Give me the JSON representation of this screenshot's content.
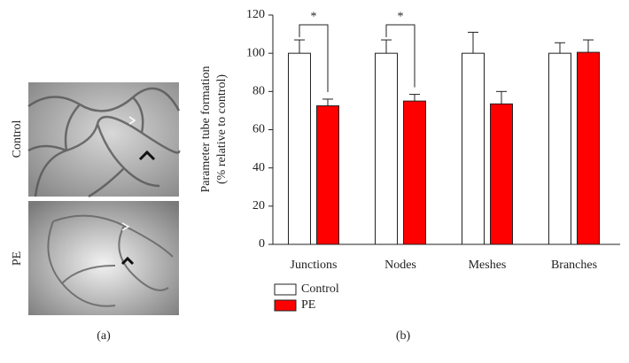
{
  "panels": {
    "a": {
      "label": "(a)",
      "image_labels": [
        "Control",
        "PE"
      ]
    },
    "b": {
      "label": "(b)"
    }
  },
  "chart_data": {
    "type": "bar",
    "ylabel": [
      "Parameter tube formation",
      "(% relative to control)"
    ],
    "categories": [
      "Junctions",
      "Nodes",
      "Meshes",
      "Branches"
    ],
    "series": [
      {
        "name": "Control",
        "color": "#ffffff",
        "values": [
          100,
          100,
          100,
          100
        ],
        "errors": [
          7,
          7,
          11,
          5.5
        ]
      },
      {
        "name": "PE",
        "color": "#ff0000",
        "values": [
          72.5,
          75,
          73.5,
          100.5
        ],
        "errors": [
          3.5,
          3.5,
          6.5,
          6.5
        ]
      }
    ],
    "significance": [
      "*",
      "*",
      null,
      null
    ],
    "ylim": [
      0,
      120
    ],
    "yticks": [
      0,
      20,
      40,
      60,
      80,
      100,
      120
    ],
    "legend": "bottom-left"
  }
}
